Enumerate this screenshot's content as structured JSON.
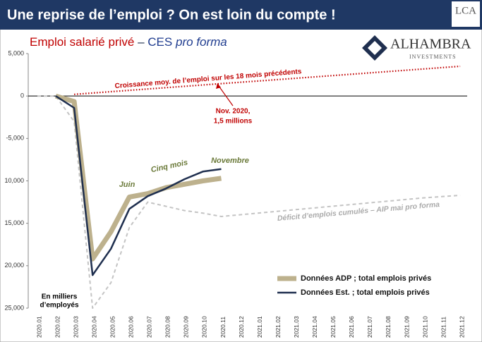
{
  "title": "Une reprise de l’emploi ? On est loin du compte !",
  "logos": {
    "lca": "LCA",
    "alhambra": "ALHAMBRA",
    "investments": "INVESTMENTS"
  },
  "chart_data": {
    "type": "line",
    "subtitle": [
      "Emploi salarié privé",
      "–",
      "CES",
      "pro forma"
    ],
    "categories": [
      "2020.01",
      "2020.02",
      "2020.03",
      "2020.04",
      "2020.05",
      "2020.06",
      "2020.07",
      "2020.08",
      "2020.09",
      "2020.10",
      "2020.11",
      "2020.12",
      "2021.01",
      "2021.02",
      "2021.03",
      "2021.04",
      "2021.05",
      "2021.06",
      "2021.07",
      "2021.08",
      "2021.09",
      "2021.10",
      "2021.11",
      "2021.12"
    ],
    "ylim": [
      -25000,
      5000
    ],
    "yticks": [
      {
        "value": 5000,
        "label": "5,000"
      },
      0,
      {
        "value": -5000,
        "label": "-5,000"
      },
      {
        "value": -10000,
        "label": "10,000"
      },
      {
        "value": -15000,
        "label": "15,000"
      },
      {
        "value": -20000,
        "label": "20,000"
      },
      {
        "value": -25000,
        "label": "25,000"
      }
    ],
    "series": [
      {
        "name": "Données ADP ; total emplois privés",
        "color": "#bdb18d",
        "width": 7,
        "values": [
          null,
          0,
          -650,
          -19200,
          -16000,
          -11900,
          -11500,
          -10800,
          -10400,
          -10000,
          -9700,
          null,
          null,
          null,
          null,
          null,
          null,
          null,
          null,
          null,
          null,
          null,
          null,
          null
        ]
      },
      {
        "name": "Données Est. ; total emplois privés",
        "color": "#1f2f4f",
        "width": 2.5,
        "values": [
          null,
          0,
          -1400,
          -21100,
          -18000,
          -13300,
          -11800,
          -10900,
          -9800,
          -8900,
          -8600,
          null,
          null,
          null,
          null,
          null,
          null,
          null,
          null,
          null,
          null,
          null,
          null,
          null
        ]
      },
      {
        "color": "#c4c4c4",
        "width": 2,
        "dash": "5,4",
        "values": [
          0,
          0,
          -3000,
          -25000,
          -22000,
          -15500,
          -12500,
          -13000,
          -13500,
          -13800,
          -14200,
          -14000,
          -13800,
          -13600,
          -13400,
          -13200,
          -13000,
          -12800,
          -12600,
          -12400,
          -12200,
          -12000,
          -11850,
          -11700
        ]
      },
      {
        "color": "#c00000",
        "width": 2.2,
        "dash": "1.5,2.5",
        "values": [
          null,
          null,
          200,
          357,
          514,
          671,
          829,
          986,
          1143,
          1300,
          1457,
          1614,
          1771,
          1929,
          2086,
          2243,
          2400,
          2557,
          2714,
          2871,
          3029,
          3186,
          3343,
          3500
        ]
      }
    ],
    "annotations": {
      "trend": "Croissance moy. de l’emploi sur les 18 mois précédents",
      "nov": [
        "Nov. 2020,",
        "1,5 millions"
      ],
      "juin": "Juin",
      "cinq": "Cinq mois",
      "novembre": "Novembre",
      "deficit": [
        "Déficit d’emplois cumulés – AIP mai",
        "pro forma"
      ],
      "units": [
        "En milliers",
        "d’employés"
      ]
    }
  }
}
